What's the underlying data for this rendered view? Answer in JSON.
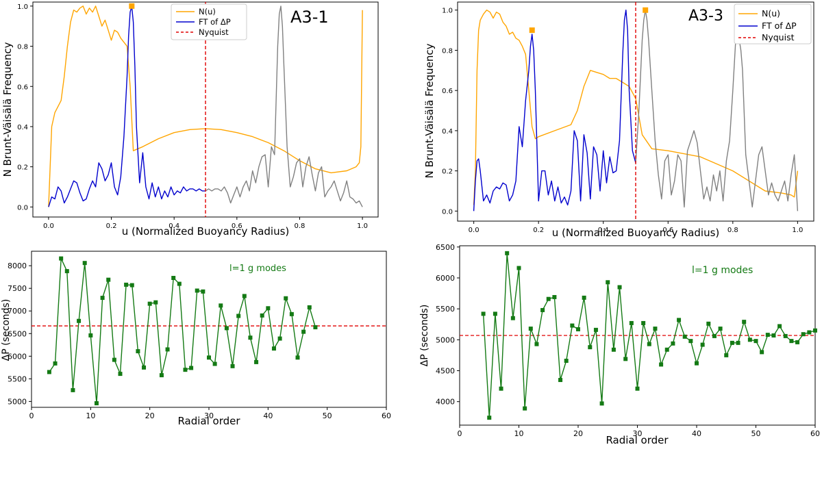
{
  "chart_data": [
    {
      "type": "line",
      "panel_label": "A3-1",
      "xlabel": "u (Normalized Buoyancy Radius)",
      "ylabel": "N Brunt-Väisälä Frequency",
      "xlim": [
        -0.05,
        1.05
      ],
      "ylim": [
        -0.05,
        1.02
      ],
      "xticks": [
        0.0,
        0.2,
        0.4,
        0.6,
        0.8,
        1.0
      ],
      "xtick_labels": [
        "0.0",
        "0.2",
        "0.4",
        "0.6",
        "0.8",
        "1.0"
      ],
      "yticks": [
        0.0,
        0.2,
        0.4,
        0.6,
        0.8,
        1.0
      ],
      "ytick_labels": [
        "0.0",
        "0.2",
        "0.4",
        "0.6",
        "0.8",
        "1.0"
      ],
      "legend": {
        "position": "top-center",
        "entries": [
          "N(u)",
          "FT of ΔP",
          "Nyquist"
        ]
      },
      "nyquist": 0.5,
      "markers": [
        {
          "x": 0.265,
          "y": 1.0,
          "color": "#ffa500"
        }
      ],
      "series": [
        {
          "name": "N(u)",
          "color": "#ffa500",
          "style": "solid",
          "x": [
            0.0,
            0.005,
            0.01,
            0.02,
            0.03,
            0.04,
            0.05,
            0.06,
            0.07,
            0.08,
            0.09,
            0.1,
            0.11,
            0.12,
            0.13,
            0.14,
            0.15,
            0.16,
            0.17,
            0.18,
            0.19,
            0.2,
            0.21,
            0.22,
            0.23,
            0.24,
            0.25,
            0.26,
            0.27,
            0.3,
            0.35,
            0.4,
            0.45,
            0.5,
            0.55,
            0.6,
            0.65,
            0.7,
            0.75,
            0.8,
            0.85,
            0.9,
            0.95,
            0.98,
            0.99,
            0.995,
            1.0
          ],
          "y": [
            0.0,
            0.2,
            0.4,
            0.47,
            0.5,
            0.53,
            0.65,
            0.8,
            0.92,
            0.98,
            0.97,
            0.99,
            1.0,
            0.96,
            0.99,
            0.97,
            1.0,
            0.95,
            0.9,
            0.93,
            0.88,
            0.83,
            0.88,
            0.87,
            0.84,
            0.82,
            0.8,
            0.6,
            0.28,
            0.3,
            0.34,
            0.37,
            0.385,
            0.39,
            0.385,
            0.37,
            0.35,
            0.32,
            0.28,
            0.23,
            0.19,
            0.17,
            0.18,
            0.2,
            0.22,
            0.3,
            0.98
          ]
        },
        {
          "name": "FT of ΔP",
          "color": "#0000cd",
          "style": "solid",
          "x": [
            0.0,
            0.01,
            0.02,
            0.03,
            0.04,
            0.05,
            0.06,
            0.07,
            0.08,
            0.09,
            0.1,
            0.11,
            0.12,
            0.13,
            0.14,
            0.15,
            0.16,
            0.17,
            0.18,
            0.19,
            0.2,
            0.21,
            0.22,
            0.23,
            0.24,
            0.25,
            0.255,
            0.26,
            0.265,
            0.27,
            0.275,
            0.28,
            0.29,
            0.3,
            0.31,
            0.32,
            0.33,
            0.34,
            0.35,
            0.36,
            0.37,
            0.38,
            0.39,
            0.4,
            0.41,
            0.42,
            0.43,
            0.44,
            0.45,
            0.46,
            0.47,
            0.48,
            0.49,
            0.5
          ],
          "y": [
            0.0,
            0.05,
            0.04,
            0.1,
            0.08,
            0.02,
            0.05,
            0.09,
            0.13,
            0.12,
            0.07,
            0.03,
            0.04,
            0.09,
            0.13,
            0.1,
            0.22,
            0.19,
            0.13,
            0.16,
            0.22,
            0.1,
            0.06,
            0.15,
            0.35,
            0.65,
            0.85,
            0.97,
            1.0,
            0.92,
            0.7,
            0.4,
            0.12,
            0.27,
            0.1,
            0.04,
            0.12,
            0.05,
            0.1,
            0.04,
            0.08,
            0.05,
            0.1,
            0.06,
            0.08,
            0.07,
            0.1,
            0.08,
            0.09,
            0.09,
            0.08,
            0.09,
            0.08,
            0.08
          ]
        },
        {
          "name": "",
          "color": "#808080",
          "style": "solid",
          "x": [
            0.5,
            0.51,
            0.52,
            0.53,
            0.54,
            0.55,
            0.56,
            0.57,
            0.58,
            0.59,
            0.6,
            0.61,
            0.62,
            0.63,
            0.64,
            0.65,
            0.66,
            0.67,
            0.68,
            0.69,
            0.7,
            0.71,
            0.72,
            0.73,
            0.735,
            0.74,
            0.745,
            0.75,
            0.76,
            0.77,
            0.78,
            0.79,
            0.8,
            0.81,
            0.82,
            0.83,
            0.84,
            0.85,
            0.86,
            0.87,
            0.88,
            0.89,
            0.9,
            0.91,
            0.92,
            0.93,
            0.94,
            0.95,
            0.96,
            0.97,
            0.98,
            0.99,
            1.0
          ],
          "y": [
            0.08,
            0.09,
            0.08,
            0.09,
            0.09,
            0.08,
            0.1,
            0.07,
            0.02,
            0.06,
            0.1,
            0.05,
            0.1,
            0.13,
            0.08,
            0.18,
            0.12,
            0.2,
            0.25,
            0.26,
            0.1,
            0.3,
            0.26,
            0.8,
            0.96,
            1.0,
            0.9,
            0.7,
            0.3,
            0.1,
            0.15,
            0.22,
            0.24,
            0.1,
            0.2,
            0.25,
            0.16,
            0.08,
            0.17,
            0.2,
            0.05,
            0.08,
            0.1,
            0.13,
            0.08,
            0.03,
            0.07,
            0.13,
            0.05,
            0.04,
            0.02,
            0.03,
            0.0
          ]
        }
      ]
    },
    {
      "type": "line",
      "panel_label": "A3-3",
      "xlabel": "u (Normalized Buoyancy Radius)",
      "ylabel": "N Brunt-Väisälä Frequency",
      "xlim": [
        -0.05,
        1.05
      ],
      "ylim": [
        -0.05,
        1.04
      ],
      "xticks": [
        0.0,
        0.2,
        0.4,
        0.6,
        0.8,
        1.0
      ],
      "xtick_labels": [
        "0.0",
        "0.2",
        "0.4",
        "0.6",
        "0.8",
        "1.0"
      ],
      "yticks": [
        0.0,
        0.2,
        0.4,
        0.6,
        0.8,
        1.0
      ],
      "ytick_labels": [
        "0.0",
        "0.2",
        "0.4",
        "0.6",
        "0.8",
        "1.0"
      ],
      "legend": {
        "position": "top-right",
        "entries": [
          "N(u)",
          "FT of ΔP",
          "Nyquist"
        ]
      },
      "nyquist": 0.5,
      "markers": [
        {
          "x": 0.18,
          "y": 0.9,
          "color": "#ffa500"
        },
        {
          "x": 0.53,
          "y": 1.0,
          "color": "#ffa500"
        }
      ],
      "series": [
        {
          "name": "N(u)",
          "color": "#ffa500",
          "style": "solid",
          "x": [
            0.0,
            0.005,
            0.01,
            0.015,
            0.02,
            0.03,
            0.04,
            0.05,
            0.06,
            0.07,
            0.08,
            0.09,
            0.1,
            0.11,
            0.12,
            0.13,
            0.14,
            0.15,
            0.16,
            0.17,
            0.18,
            0.19,
            0.2,
            0.25,
            0.3,
            0.32,
            0.34,
            0.36,
            0.38,
            0.4,
            0.42,
            0.44,
            0.46,
            0.48,
            0.5,
            0.52,
            0.55,
            0.6,
            0.7,
            0.8,
            0.9,
            0.95,
            0.98,
            0.99,
            1.0
          ],
          "y": [
            0.03,
            0.2,
            0.7,
            0.9,
            0.95,
            0.98,
            1.0,
            0.99,
            0.96,
            0.99,
            0.98,
            0.94,
            0.92,
            0.88,
            0.89,
            0.86,
            0.85,
            0.82,
            0.78,
            0.6,
            0.42,
            0.36,
            0.37,
            0.4,
            0.43,
            0.5,
            0.62,
            0.7,
            0.69,
            0.68,
            0.66,
            0.66,
            0.64,
            0.62,
            0.56,
            0.38,
            0.31,
            0.3,
            0.27,
            0.2,
            0.1,
            0.09,
            0.08,
            0.07,
            0.2
          ]
        },
        {
          "name": "FT of ΔP",
          "color": "#0000cd",
          "style": "solid",
          "x": [
            0.0,
            0.005,
            0.01,
            0.015,
            0.02,
            0.03,
            0.04,
            0.05,
            0.06,
            0.07,
            0.08,
            0.09,
            0.1,
            0.11,
            0.12,
            0.13,
            0.14,
            0.15,
            0.16,
            0.17,
            0.175,
            0.18,
            0.185,
            0.19,
            0.2,
            0.21,
            0.22,
            0.23,
            0.24,
            0.25,
            0.26,
            0.27,
            0.28,
            0.29,
            0.3,
            0.31,
            0.32,
            0.33,
            0.34,
            0.35,
            0.36,
            0.37,
            0.38,
            0.39,
            0.4,
            0.41,
            0.42,
            0.43,
            0.44,
            0.45,
            0.46,
            0.465,
            0.47,
            0.475,
            0.48,
            0.49,
            0.5
          ],
          "y": [
            0.0,
            0.15,
            0.25,
            0.26,
            0.2,
            0.05,
            0.08,
            0.04,
            0.1,
            0.12,
            0.11,
            0.14,
            0.13,
            0.05,
            0.08,
            0.15,
            0.42,
            0.32,
            0.55,
            0.7,
            0.82,
            0.88,
            0.8,
            0.6,
            0.05,
            0.2,
            0.2,
            0.08,
            0.15,
            0.05,
            0.12,
            0.04,
            0.07,
            0.03,
            0.1,
            0.4,
            0.35,
            0.05,
            0.38,
            0.29,
            0.06,
            0.32,
            0.28,
            0.1,
            0.3,
            0.14,
            0.27,
            0.19,
            0.2,
            0.35,
            0.78,
            0.95,
            1.0,
            0.9,
            0.6,
            0.3,
            0.24
          ]
        },
        {
          "name": "",
          "color": "#808080",
          "style": "solid",
          "x": [
            0.5,
            0.51,
            0.52,
            0.525,
            0.53,
            0.535,
            0.54,
            0.55,
            0.56,
            0.57,
            0.58,
            0.59,
            0.6,
            0.61,
            0.62,
            0.63,
            0.64,
            0.65,
            0.66,
            0.67,
            0.68,
            0.69,
            0.7,
            0.71,
            0.72,
            0.73,
            0.74,
            0.75,
            0.76,
            0.77,
            0.78,
            0.79,
            0.8,
            0.81,
            0.815,
            0.82,
            0.825,
            0.83,
            0.84,
            0.85,
            0.86,
            0.87,
            0.88,
            0.89,
            0.9,
            0.91,
            0.92,
            0.93,
            0.94,
            0.95,
            0.96,
            0.97,
            0.98,
            0.99,
            1.0
          ],
          "y": [
            0.24,
            0.5,
            0.85,
            0.95,
            1.0,
            0.95,
            0.85,
            0.6,
            0.35,
            0.18,
            0.06,
            0.25,
            0.28,
            0.08,
            0.15,
            0.28,
            0.25,
            0.02,
            0.3,
            0.35,
            0.4,
            0.34,
            0.2,
            0.06,
            0.12,
            0.05,
            0.18,
            0.1,
            0.2,
            0.05,
            0.25,
            0.35,
            0.6,
            0.88,
            0.9,
            0.85,
            0.8,
            0.7,
            0.28,
            0.15,
            0.02,
            0.15,
            0.28,
            0.32,
            0.2,
            0.08,
            0.14,
            0.08,
            0.05,
            0.1,
            0.15,
            0.05,
            0.18,
            0.28,
            0.0
          ]
        }
      ]
    },
    {
      "type": "line",
      "xlabel": "Radial order",
      "ylabel": "ΔP (seconds)",
      "annotation": "l=1 g modes",
      "xlim": [
        0,
        60
      ],
      "ylim": [
        4870,
        8320
      ],
      "xticks": [
        0,
        10,
        20,
        30,
        40,
        50,
        60
      ],
      "xtick_labels": [
        "0",
        "10",
        "20",
        "30",
        "40",
        "50",
        "60"
      ],
      "yticks": [
        5000,
        5500,
        6000,
        6500,
        7000,
        7500,
        8000
      ],
      "ytick_labels": [
        "5000",
        "5500",
        "6000",
        "6500",
        "7000",
        "7500",
        "8000"
      ],
      "hline": 6670,
      "series": [
        {
          "name": "",
          "color": "#147a14",
          "marker": "square",
          "x": [
            3,
            4,
            5,
            6,
            7,
            8,
            9,
            10,
            11,
            12,
            13,
            14,
            15,
            16,
            17,
            18,
            19,
            20,
            21,
            22,
            23,
            24,
            25,
            26,
            27,
            28,
            29,
            30,
            31,
            32,
            33,
            34,
            35,
            36,
            37,
            38,
            39,
            40,
            41,
            42,
            43,
            44,
            45,
            46,
            47,
            48
          ],
          "y": [
            5650,
            5840,
            8160,
            7880,
            5250,
            6780,
            8060,
            6460,
            4960,
            7290,
            7690,
            5920,
            5610,
            7580,
            7570,
            6110,
            5750,
            7160,
            7190,
            5580,
            6150,
            7730,
            7600,
            5700,
            5740,
            7450,
            7430,
            5970,
            5830,
            7120,
            6620,
            5780,
            6890,
            7330,
            6410,
            5870,
            6900,
            7060,
            6170,
            6390,
            7280,
            6930,
            5970,
            6540,
            7080,
            6640
          ]
        }
      ]
    },
    {
      "type": "line",
      "xlabel": "Radial order",
      "ylabel": "ΔP (seconds)",
      "annotation": "l=1 g modes",
      "xlim": [
        0,
        60
      ],
      "ylim": [
        3620,
        6520
      ],
      "xticks": [
        0,
        10,
        20,
        30,
        40,
        50,
        60
      ],
      "xtick_labels": [
        "0",
        "10",
        "20",
        "30",
        "40",
        "50",
        "60"
      ],
      "yticks": [
        4000,
        4500,
        5000,
        5500,
        6000,
        6500
      ],
      "ytick_labels": [
        "4000",
        "4500",
        "5000",
        "5500",
        "6000",
        "6500"
      ],
      "hline": 5070,
      "series": [
        {
          "name": "",
          "color": "#147a14",
          "marker": "square",
          "x": [
            4,
            5,
            6,
            7,
            8,
            9,
            10,
            11,
            12,
            13,
            14,
            15,
            16,
            17,
            18,
            19,
            20,
            21,
            22,
            23,
            24,
            25,
            26,
            27,
            28,
            29,
            30,
            31,
            32,
            33,
            34,
            35,
            36,
            37,
            38,
            39,
            40,
            41,
            42,
            43,
            44,
            45,
            46,
            47,
            48,
            49,
            50,
            51,
            52,
            53,
            54,
            55,
            56,
            57,
            58,
            59,
            60
          ],
          "y": [
            5420,
            3740,
            5420,
            4210,
            6400,
            5350,
            6160,
            3890,
            5180,
            4930,
            5480,
            5660,
            5690,
            4350,
            4660,
            5230,
            5170,
            5680,
            4880,
            5160,
            3970,
            5930,
            4840,
            5850,
            4690,
            5270,
            4210,
            5270,
            4930,
            5180,
            4600,
            4840,
            4940,
            5320,
            5050,
            4980,
            4620,
            4920,
            5260,
            5060,
            5180,
            4750,
            4950,
            4950,
            5290,
            5000,
            4980,
            4800,
            5080,
            5070,
            5220,
            5060,
            4980,
            4960,
            5090,
            5120,
            5150
          ]
        }
      ]
    }
  ]
}
